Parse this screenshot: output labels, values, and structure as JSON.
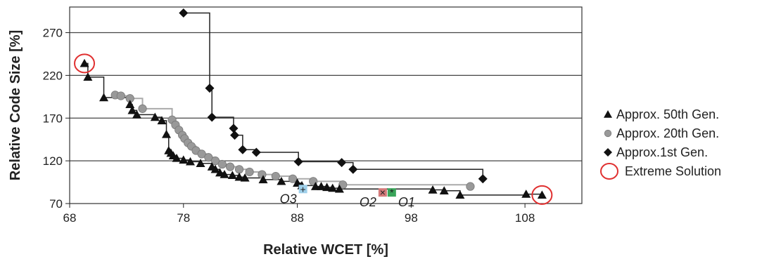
{
  "chart_data": {
    "type": "scatter",
    "title": "",
    "xlabel": "Relative WCET [%]",
    "ylabel": "Relative Code Size [%]",
    "xlim": [
      68,
      113
    ],
    "ylim": [
      70,
      300
    ],
    "xticks": [
      "68",
      "78",
      "88",
      "98",
      "108"
    ],
    "yticks": [
      "70",
      "120",
      "170",
      "220",
      "270"
    ],
    "grid": "horizontal",
    "legend_position": "right",
    "series": [
      {
        "name": "Approx. 50th Gen.",
        "marker": "triangle",
        "color": "#111111",
        "x": [
          69.3,
          69.6,
          71.0,
          73.3,
          73.5,
          73.9,
          75.5,
          76.1,
          76.5,
          76.7,
          76.9,
          77.1,
          77.4,
          78.0,
          78.6,
          79.5,
          80.5,
          80.8,
          81.2,
          81.6,
          82.3,
          82.9,
          83.4,
          85.0,
          86.6,
          88.0,
          88.4,
          89.6,
          90.1,
          90.6,
          91.1,
          91.7,
          99.9,
          100.9,
          102.3,
          108.1,
          109.5
        ],
        "y": [
          234,
          218,
          194,
          186,
          179,
          174,
          171,
          167,
          151,
          132,
          129,
          126,
          123,
          121,
          119,
          117,
          113,
          110,
          106,
          104,
          103,
          101,
          100,
          98,
          96,
          94,
          91,
          90,
          90,
          89,
          88,
          87,
          86,
          85,
          80,
          81,
          80
        ]
      },
      {
        "name": "Approx. 20th Gen.",
        "marker": "square",
        "color": "#999999",
        "x": [
          72.0,
          72.5,
          73.3,
          74.4,
          77.0,
          77.3,
          77.6,
          77.9,
          78.1,
          78.4,
          78.7,
          79.1,
          79.6,
          80.2,
          80.8,
          81.4,
          82.1,
          82.9,
          83.8,
          84.9,
          86.1,
          87.6,
          89.4,
          92.0,
          103.2
        ],
        "y": [
          197,
          196,
          193,
          181,
          168,
          162,
          156,
          150,
          146,
          141,
          137,
          132,
          128,
          124,
          120,
          116,
          113,
          110,
          107,
          104,
          102,
          99,
          96,
          92,
          90
        ]
      },
      {
        "name": "Approx.1st Gen.",
        "marker": "diamond",
        "color": "#111111",
        "x": [
          78.0,
          80.3,
          80.5,
          82.4,
          82.5,
          83.2,
          84.4,
          88.1,
          91.9,
          92.9,
          104.3
        ],
        "y": [
          293,
          205,
          171,
          158,
          150,
          133,
          130,
          119,
          118,
          110,
          99
        ]
      }
    ],
    "extreme_solutions_legend": "Extreme Solution",
    "extreme_solutions": [
      {
        "x": 69.3,
        "y": 234
      },
      {
        "x": 109.5,
        "y": 80
      }
    ],
    "annotations": [
      {
        "text": "O3",
        "x": 88.5,
        "y": 87,
        "color": "#9fd0ea",
        "symbol": "+"
      },
      {
        "text": "O2",
        "x": 95.5,
        "y": 83,
        "color": "#d47a7a",
        "symbol": "×"
      },
      {
        "text": "O1",
        "x": 96.3,
        "y": 83,
        "color": "#3aa55a",
        "symbol": "*"
      }
    ]
  }
}
